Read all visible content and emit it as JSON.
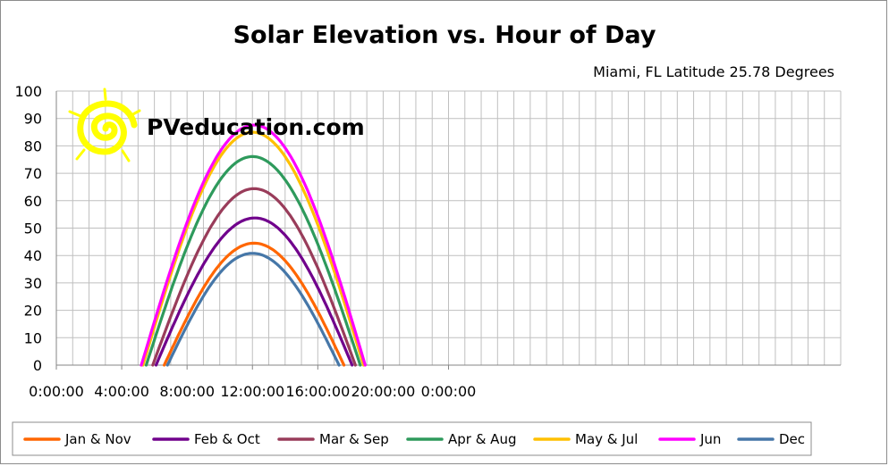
{
  "chart_data": {
    "type": "line",
    "title": "Solar Elevation vs. Hour of Day",
    "subtitle": "Miami, FL Latitude 25.78 Degrees",
    "xlabel": "",
    "ylabel": "",
    "xlim_hours": [
      0,
      48
    ],
    "ylim": [
      0,
      100
    ],
    "x_tick_labels": [
      "0:00:00",
      "4:00:00",
      "8:00:00",
      "12:00:00",
      "16:00:00",
      "20:00:00",
      "0:00:00"
    ],
    "y_tick_labels": [
      "0",
      "10",
      "20",
      "30",
      "40",
      "50",
      "60",
      "70",
      "80",
      "90",
      "100"
    ],
    "grid": true,
    "legend_position": "bottom",
    "series": [
      {
        "name": "Jan & Nov",
        "color": "#ff6600",
        "sunrise_hour": 6.6,
        "sunset_hour": 17.6,
        "peak_hour": 12.1,
        "peak_elevation": 44.5
      },
      {
        "name": "Feb & Oct",
        "color": "#70008c",
        "sunrise_hour": 6.1,
        "sunset_hour": 18.1,
        "peak_hour": 12.15,
        "peak_elevation": 53.7
      },
      {
        "name": "Mar & Sep",
        "color": "#993c5a",
        "sunrise_hour": 5.9,
        "sunset_hour": 18.3,
        "peak_hour": 12.1,
        "peak_elevation": 64.4
      },
      {
        "name": "Apr & Aug",
        "color": "#2e9a5c",
        "sunrise_hour": 5.5,
        "sunset_hour": 18.6,
        "peak_hour": 12.0,
        "peak_elevation": 76.1
      },
      {
        "name": "May & Jul",
        "color": "#ffc000",
        "sunrise_hour": 5.3,
        "sunset_hour": 18.8,
        "peak_hour": 12.0,
        "peak_elevation": 85.0
      },
      {
        "name": "Jun",
        "color": "#ff00ff",
        "sunrise_hour": 5.2,
        "sunset_hour": 18.9,
        "peak_hour": 12.1,
        "peak_elevation": 87.6
      },
      {
        "name": "Dec",
        "color": "#4677a8",
        "sunrise_hour": 6.8,
        "sunset_hour": 17.3,
        "peak_hour": 12.0,
        "peak_elevation": 40.8
      }
    ]
  },
  "logo": {
    "text": "PVeducation.com",
    "icon": "sun-icon",
    "sun_color": "#ffff00"
  }
}
